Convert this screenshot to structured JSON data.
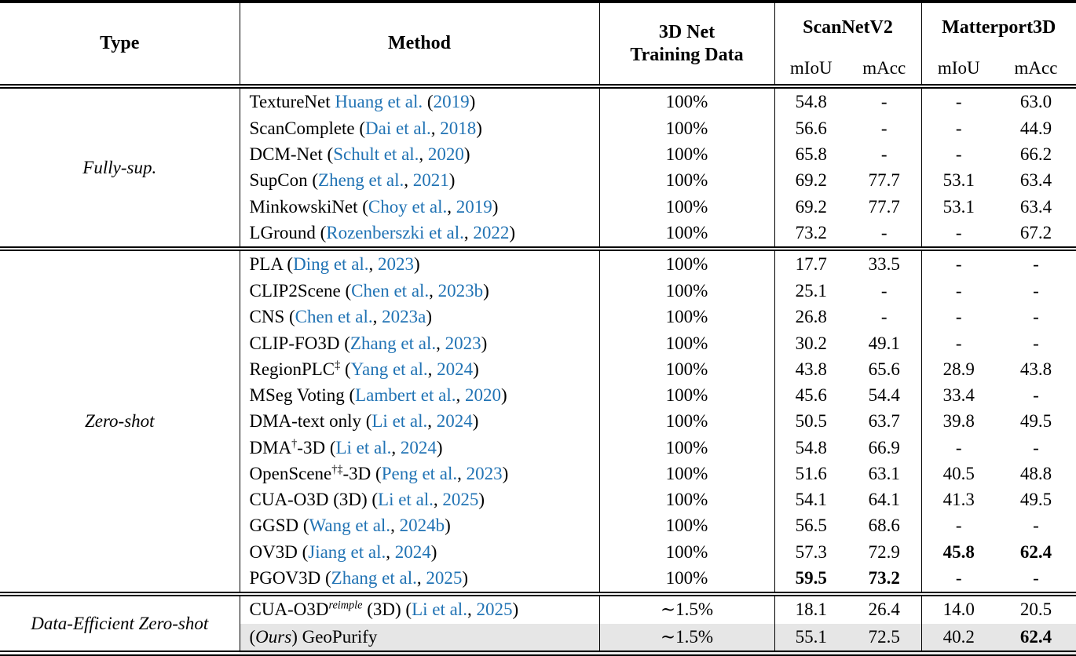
{
  "table": {
    "headers": {
      "type": "Type",
      "method": "Method",
      "training_line1": "3D Net",
      "training_line2": "Training Data",
      "scannet": "ScanNetV2",
      "matterport": "Matterport3D",
      "sub": [
        "mIoU",
        "mAcc",
        "mIoU",
        "mAcc"
      ]
    },
    "colors": {
      "link_blue": "#2173b4",
      "highlight_gray": "#e6e6e6",
      "rule_black": "#000000"
    },
    "groups": [
      {
        "type": "Fully-sup.",
        "rows": [
          {
            "method": [
              {
                "t": "TextureNet "
              },
              {
                "t": "Huang et al.",
                "s": "l"
              },
              {
                "t": " ("
              },
              {
                "t": "2019",
                "s": "l"
              },
              {
                "t": ")"
              }
            ],
            "training": "100%",
            "values": [
              "54.8",
              "-",
              "-",
              "63.0"
            ]
          },
          {
            "method": [
              {
                "t": "ScanComplete ("
              },
              {
                "t": "Dai et al.",
                "s": "l"
              },
              {
                "t": ", "
              },
              {
                "t": "2018",
                "s": "l"
              },
              {
                "t": ")"
              }
            ],
            "training": "100%",
            "values": [
              "56.6",
              "-",
              "-",
              "44.9"
            ]
          },
          {
            "method": [
              {
                "t": "DCM-Net ("
              },
              {
                "t": "Schult et al.",
                "s": "l"
              },
              {
                "t": ", "
              },
              {
                "t": "2020",
                "s": "l"
              },
              {
                "t": ")"
              }
            ],
            "training": "100%",
            "values": [
              "65.8",
              "-",
              "-",
              "66.2"
            ]
          },
          {
            "method": [
              {
                "t": "SupCon ("
              },
              {
                "t": "Zheng et al.",
                "s": "l"
              },
              {
                "t": ", "
              },
              {
                "t": "2021",
                "s": "l"
              },
              {
                "t": ")"
              }
            ],
            "training": "100%",
            "values": [
              "69.2",
              "77.7",
              "53.1",
              "63.4"
            ]
          },
          {
            "method": [
              {
                "t": "MinkowskiNet ("
              },
              {
                "t": "Choy et al.",
                "s": "l"
              },
              {
                "t": ", "
              },
              {
                "t": "2019",
                "s": "l"
              },
              {
                "t": ")"
              }
            ],
            "training": "100%",
            "values": [
              "69.2",
              "77.7",
              "53.1",
              "63.4"
            ]
          },
          {
            "method": [
              {
                "t": "LGround ("
              },
              {
                "t": "Rozenberszki et al.",
                "s": "l"
              },
              {
                "t": ", "
              },
              {
                "t": "2022",
                "s": "l"
              },
              {
                "t": ")"
              }
            ],
            "training": "100%",
            "values": [
              "73.2",
              "-",
              "-",
              "67.2"
            ]
          }
        ]
      },
      {
        "type": "Zero-shot",
        "rows": [
          {
            "method": [
              {
                "t": "PLA ("
              },
              {
                "t": "Ding et al.",
                "s": "l"
              },
              {
                "t": ", "
              },
              {
                "t": "2023",
                "s": "l"
              },
              {
                "t": ")"
              }
            ],
            "training": "100%",
            "values": [
              "17.7",
              "33.5",
              "-",
              "-"
            ]
          },
          {
            "method": [
              {
                "t": "CLIP2Scene ("
              },
              {
                "t": "Chen et al.",
                "s": "l"
              },
              {
                "t": ", "
              },
              {
                "t": "2023b",
                "s": "l"
              },
              {
                "t": ")"
              }
            ],
            "training": "100%",
            "values": [
              "25.1",
              "-",
              "-",
              "-"
            ]
          },
          {
            "method": [
              {
                "t": "CNS ("
              },
              {
                "t": "Chen et al.",
                "s": "l"
              },
              {
                "t": ", "
              },
              {
                "t": "2023a",
                "s": "l"
              },
              {
                "t": ")"
              }
            ],
            "training": "100%",
            "values": [
              "26.8",
              "-",
              "-",
              "-"
            ]
          },
          {
            "method": [
              {
                "t": "CLIP-FO3D ("
              },
              {
                "t": "Zhang et al.",
                "s": "l"
              },
              {
                "t": ", "
              },
              {
                "t": "2023",
                "s": "l"
              },
              {
                "t": ")"
              }
            ],
            "training": "100%",
            "values": [
              "30.2",
              "49.1",
              "-",
              "-"
            ]
          },
          {
            "method": [
              {
                "t": "RegionPLC"
              },
              {
                "t": "‡",
                "s": "s"
              },
              {
                "t": " ("
              },
              {
                "t": "Yang et al.",
                "s": "l"
              },
              {
                "t": ", "
              },
              {
                "t": "2024",
                "s": "l"
              },
              {
                "t": ")"
              }
            ],
            "training": "100%",
            "values": [
              "43.8",
              "65.6",
              "28.9",
              "43.8"
            ]
          },
          {
            "method": [
              {
                "t": "MSeg Voting ("
              },
              {
                "t": "Lambert et al.",
                "s": "l"
              },
              {
                "t": ", "
              },
              {
                "t": "2020",
                "s": "l"
              },
              {
                "t": ")"
              }
            ],
            "training": "100%",
            "values": [
              "45.6",
              "54.4",
              "33.4",
              "-"
            ]
          },
          {
            "method": [
              {
                "t": "DMA-text only ("
              },
              {
                "t": "Li et al.",
                "s": "l"
              },
              {
                "t": ", "
              },
              {
                "t": "2024",
                "s": "l"
              },
              {
                "t": ")"
              }
            ],
            "training": "100%",
            "values": [
              "50.5",
              "63.7",
              "39.8",
              "49.5"
            ]
          },
          {
            "method": [
              {
                "t": "DMA"
              },
              {
                "t": "†",
                "s": "s"
              },
              {
                "t": "-3D ("
              },
              {
                "t": "Li et al.",
                "s": "l"
              },
              {
                "t": ", "
              },
              {
                "t": "2024",
                "s": "l"
              },
              {
                "t": ")"
              }
            ],
            "training": "100%",
            "values": [
              "54.8",
              "66.9",
              "-",
              "-"
            ]
          },
          {
            "method": [
              {
                "t": "OpenScene"
              },
              {
                "t": "†‡",
                "s": "s"
              },
              {
                "t": "-3D ("
              },
              {
                "t": "Peng et al.",
                "s": "l"
              },
              {
                "t": ", "
              },
              {
                "t": "2023",
                "s": "l"
              },
              {
                "t": ")"
              }
            ],
            "training": "100%",
            "values": [
              "51.6",
              "63.1",
              "40.5",
              "48.8"
            ]
          },
          {
            "method": [
              {
                "t": "CUA-O3D (3D) ("
              },
              {
                "t": "Li et al.",
                "s": "l"
              },
              {
                "t": ", "
              },
              {
                "t": "2025",
                "s": "l"
              },
              {
                "t": ")"
              }
            ],
            "training": "100%",
            "values": [
              "54.1",
              "64.1",
              "41.3",
              "49.5"
            ]
          },
          {
            "method": [
              {
                "t": "GGSD ("
              },
              {
                "t": "Wang et al.",
                "s": "l"
              },
              {
                "t": ", "
              },
              {
                "t": "2024b",
                "s": "l"
              },
              {
                "t": ")"
              }
            ],
            "training": "100%",
            "values": [
              "56.5",
              "68.6",
              "-",
              "-"
            ]
          },
          {
            "method": [
              {
                "t": "OV3D ("
              },
              {
                "t": "Jiang et al.",
                "s": "l"
              },
              {
                "t": ", "
              },
              {
                "t": "2024",
                "s": "l"
              },
              {
                "t": ")"
              }
            ],
            "training": "100%",
            "values": [
              "57.3",
              "72.9",
              {
                "t": "45.8",
                "b": true
              },
              {
                "t": "62.4",
                "b": true
              }
            ]
          },
          {
            "method": [
              {
                "t": "PGOV3D ("
              },
              {
                "t": "Zhang et al.",
                "s": "l"
              },
              {
                "t": ", "
              },
              {
                "t": "2025",
                "s": "l"
              },
              {
                "t": ")"
              }
            ],
            "training": "100%",
            "values": [
              {
                "t": "59.5",
                "b": true
              },
              {
                "t": "73.2",
                "b": true
              },
              "-",
              "-"
            ]
          }
        ]
      },
      {
        "type": "Data-Efficient Zero-shot",
        "rows": [
          {
            "method": [
              {
                "t": "CUA-O3D"
              },
              {
                "t": "reimple",
                "s": "si"
              },
              {
                "t": " (3D) ("
              },
              {
                "t": "Li et al.",
                "s": "l"
              },
              {
                "t": ", "
              },
              {
                "t": "2025",
                "s": "l"
              },
              {
                "t": ")"
              }
            ],
            "training": "∼1.5%",
            "values": [
              "18.1",
              "26.4",
              "14.0",
              "20.5"
            ]
          },
          {
            "method": [
              {
                "t": "("
              },
              {
                "t": "Ours",
                "s": "i"
              },
              {
                "t": ") GeoPurify"
              }
            ],
            "training": "∼1.5%",
            "values": [
              "55.1",
              "72.5",
              "40.2",
              {
                "t": "62.4",
                "b": true
              }
            ],
            "highlight": true
          }
        ]
      }
    ]
  }
}
